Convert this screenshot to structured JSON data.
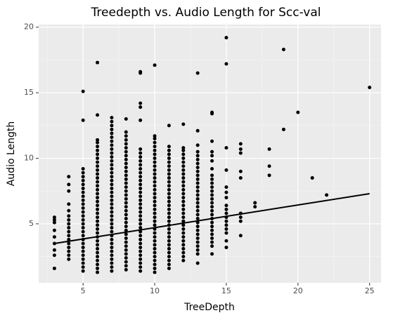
{
  "chart_data": {
    "type": "scatter",
    "title": "Treedepth vs. Audio Length for Scc-val",
    "xlabel": "TreeDepth",
    "ylabel": "Audio Length",
    "xlim": [
      1.9,
      25.8
    ],
    "ylim": [
      0.5,
      20.2
    ],
    "xticks": [
      5,
      10,
      15,
      20,
      25
    ],
    "yticks": [
      5,
      10,
      15,
      20
    ],
    "grid": true,
    "color": "#000000",
    "trend": {
      "color": "#000000",
      "x": [
        3,
        25
      ],
      "y": [
        3.5,
        7.3
      ]
    },
    "x": [
      3,
      3,
      3,
      3,
      3,
      3,
      3,
      3,
      3,
      4,
      4,
      4,
      4,
      4,
      4,
      4,
      4,
      4,
      4,
      4,
      4,
      4,
      4,
      4,
      4,
      4,
      5,
      5,
      5,
      5,
      5,
      5,
      5,
      5,
      5,
      5,
      5,
      5,
      5,
      5,
      5,
      5,
      5,
      5,
      5,
      5,
      5,
      5,
      5,
      5,
      5,
      5,
      5,
      5,
      5,
      6,
      6,
      6,
      6,
      6,
      6,
      6,
      6,
      6,
      6,
      6,
      6,
      6,
      6,
      6,
      6,
      6,
      6,
      6,
      6,
      6,
      6,
      6,
      6,
      6,
      6,
      6,
      6,
      6,
      6,
      6,
      6,
      6,
      6,
      6,
      6,
      6,
      7,
      7,
      7,
      7,
      7,
      7,
      7,
      7,
      7,
      7,
      7,
      7,
      7,
      7,
      7,
      7,
      7,
      7,
      7,
      7,
      7,
      7,
      7,
      7,
      7,
      7,
      7,
      7,
      7,
      7,
      7,
      7,
      7,
      7,
      7,
      7,
      7,
      7,
      7,
      7,
      8,
      8,
      8,
      8,
      8,
      8,
      8,
      8,
      8,
      8,
      8,
      8,
      8,
      8,
      8,
      8,
      8,
      8,
      8,
      8,
      8,
      8,
      8,
      8,
      8,
      8,
      8,
      8,
      8,
      8,
      8,
      8,
      8,
      8,
      8,
      8,
      8,
      9,
      9,
      9,
      9,
      9,
      9,
      9,
      9,
      9,
      9,
      9,
      9,
      9,
      9,
      9,
      9,
      9,
      9,
      9,
      9,
      9,
      9,
      9,
      9,
      9,
      9,
      9,
      9,
      9,
      9,
      9,
      9,
      9,
      9,
      9,
      9,
      9,
      10,
      10,
      10,
      10,
      10,
      10,
      10,
      10,
      10,
      10,
      10,
      10,
      10,
      10,
      10,
      10,
      10,
      10,
      10,
      10,
      10,
      10,
      10,
      10,
      10,
      10,
      10,
      10,
      10,
      10,
      10,
      10,
      10,
      10,
      10,
      10,
      10,
      11,
      11,
      11,
      11,
      11,
      11,
      11,
      11,
      11,
      11,
      11,
      11,
      11,
      11,
      11,
      11,
      11,
      11,
      11,
      11,
      11,
      11,
      11,
      11,
      11,
      11,
      11,
      11,
      11,
      11,
      11,
      11,
      11,
      12,
      12,
      12,
      12,
      12,
      12,
      12,
      12,
      12,
      12,
      12,
      12,
      12,
      12,
      12,
      12,
      12,
      12,
      12,
      12,
      12,
      12,
      12,
      12,
      12,
      12,
      12,
      12,
      12,
      12,
      12,
      13,
      13,
      13,
      13,
      13,
      13,
      13,
      13,
      13,
      13,
      13,
      13,
      13,
      13,
      13,
      13,
      13,
      13,
      13,
      13,
      13,
      13,
      13,
      13,
      13,
      13,
      13,
      13,
      13,
      13,
      13,
      14,
      14,
      14,
      14,
      14,
      14,
      14,
      14,
      14,
      14,
      14,
      14,
      14,
      14,
      14,
      14,
      14,
      14,
      14,
      14,
      14,
      14,
      14,
      14,
      14,
      14,
      14,
      15,
      15,
      15,
      15,
      15,
      15,
      15,
      15,
      15,
      15,
      15,
      15,
      15,
      15,
      15,
      15,
      15,
      16,
      16,
      16,
      16,
      16,
      16,
      16,
      16,
      16,
      17,
      17,
      18,
      18,
      18,
      19,
      19,
      20,
      21,
      22,
      25
    ],
    "y": [
      1.6,
      2.6,
      3.0,
      3.5,
      4.0,
      4.5,
      5.1,
      5.3,
      5.5,
      2.3,
      2.6,
      2.9,
      3.2,
      3.5,
      3.8,
      4.1,
      4.4,
      4.7,
      5.0,
      5.3,
      5.6,
      6.0,
      6.5,
      7.5,
      8.0,
      8.6,
      1.4,
      1.7,
      2.0,
      2.3,
      2.6,
      2.9,
      3.2,
      3.5,
      3.8,
      4.1,
      4.4,
      4.7,
      5.0,
      5.3,
      5.6,
      5.9,
      6.2,
      6.5,
      6.8,
      7.1,
      7.4,
      7.7,
      8.0,
      8.3,
      8.6,
      8.9,
      9.2,
      12.9,
      15.1,
      1.3,
      1.6,
      1.9,
      2.2,
      2.5,
      2.8,
      3.1,
      3.4,
      3.7,
      4.0,
      4.3,
      4.6,
      4.9,
      5.2,
      5.5,
      5.8,
      6.1,
      6.4,
      6.7,
      7.0,
      7.3,
      7.6,
      7.9,
      8.2,
      8.5,
      8.8,
      9.1,
      9.4,
      9.7,
      10.0,
      10.3,
      10.6,
      10.9,
      11.2,
      11.4,
      13.3,
      17.3,
      1.4,
      1.7,
      2.0,
      2.3,
      2.6,
      2.9,
      3.2,
      3.5,
      3.8,
      4.1,
      4.4,
      4.7,
      5.0,
      5.3,
      5.6,
      5.9,
      6.2,
      6.5,
      6.8,
      7.1,
      7.4,
      7.7,
      8.0,
      8.3,
      8.6,
      8.9,
      9.2,
      9.5,
      9.8,
      10.1,
      10.4,
      10.7,
      11.0,
      11.3,
      11.6,
      11.9,
      12.2,
      12.5,
      12.8,
      13.1,
      1.5,
      1.8,
      2.1,
      2.4,
      2.7,
      3.0,
      3.3,
      3.6,
      3.9,
      4.2,
      4.5,
      4.8,
      5.1,
      5.4,
      5.7,
      6.0,
      6.3,
      6.6,
      6.9,
      7.2,
      7.5,
      7.8,
      8.1,
      8.4,
      8.7,
      9.0,
      9.3,
      9.6,
      9.9,
      10.2,
      10.5,
      10.8,
      11.1,
      11.4,
      11.7,
      12.0,
      13.0,
      1.4,
      1.7,
      2.0,
      2.3,
      2.6,
      2.9,
      3.2,
      3.5,
      3.8,
      4.1,
      4.4,
      4.7,
      5.0,
      5.3,
      5.6,
      5.9,
      6.2,
      6.5,
      6.8,
      7.1,
      7.4,
      7.7,
      8.0,
      8.3,
      8.6,
      8.9,
      9.2,
      9.5,
      9.8,
      10.1,
      10.4,
      10.7,
      12.9,
      13.9,
      14.2,
      16.5,
      16.6,
      1.3,
      1.6,
      1.9,
      2.2,
      2.5,
      2.8,
      3.1,
      3.4,
      3.7,
      4.0,
      4.3,
      4.6,
      4.9,
      5.2,
      5.5,
      5.8,
      6.1,
      6.4,
      6.7,
      7.0,
      7.3,
      7.6,
      7.9,
      8.2,
      8.5,
      8.8,
      9.1,
      9.4,
      9.7,
      10.0,
      10.3,
      10.6,
      10.9,
      11.2,
      11.5,
      11.7,
      17.1,
      1.6,
      1.9,
      2.2,
      2.5,
      2.8,
      3.1,
      3.4,
      3.7,
      4.0,
      4.3,
      4.6,
      4.9,
      5.2,
      5.5,
      5.8,
      6.1,
      6.4,
      6.7,
      7.0,
      7.3,
      7.6,
      7.9,
      8.2,
      8.5,
      8.8,
      9.1,
      9.4,
      9.7,
      10.0,
      10.3,
      10.6,
      10.9,
      12.5,
      2.2,
      2.5,
      2.8,
      3.1,
      3.4,
      3.7,
      4.0,
      4.3,
      4.6,
      4.9,
      5.2,
      5.5,
      5.8,
      6.1,
      6.4,
      6.7,
      7.0,
      7.3,
      7.6,
      7.9,
      8.2,
      8.5,
      8.8,
      9.1,
      9.4,
      9.7,
      10.0,
      10.3,
      10.6,
      10.8,
      12.6,
      2.0,
      2.7,
      3.0,
      3.3,
      3.6,
      3.9,
      4.2,
      4.5,
      4.8,
      5.1,
      5.4,
      5.7,
      6.0,
      6.3,
      6.6,
      6.9,
      7.2,
      7.5,
      7.8,
      8.1,
      8.4,
      8.7,
      9.0,
      9.3,
      9.6,
      9.9,
      10.2,
      10.5,
      11.0,
      12.1,
      16.5,
      2.7,
      3.3,
      3.6,
      3.9,
      4.2,
      4.5,
      4.8,
      5.1,
      5.4,
      5.7,
      6.0,
      6.3,
      6.6,
      6.9,
      7.2,
      7.5,
      7.8,
      8.1,
      8.4,
      8.7,
      9.2,
      9.8,
      10.2,
      10.5,
      11.3,
      13.4,
      13.5,
      3.2,
      3.7,
      4.3,
      4.6,
      4.9,
      5.2,
      5.5,
      5.8,
      6.1,
      6.4,
      7.0,
      7.4,
      7.8,
      9.1,
      10.8,
      17.2,
      19.2,
      4.1,
      5.2,
      5.5,
      5.8,
      8.5,
      9.0,
      10.4,
      10.7,
      11.1,
      6.3,
      6.6,
      8.7,
      9.4,
      10.7,
      12.2,
      18.3,
      13.5,
      8.5,
      7.2,
      15.4
    ]
  }
}
